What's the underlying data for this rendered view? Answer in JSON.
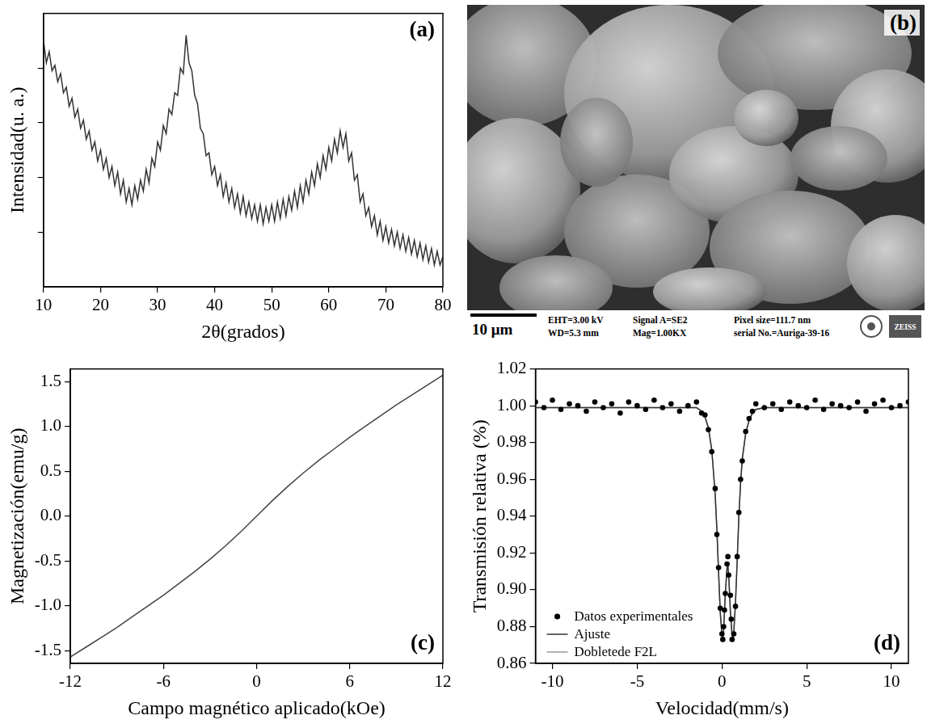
{
  "chart_data": [
    {
      "type": "line",
      "annotations": [
        "(a)"
      ],
      "xlabel": "2θ(grados)",
      "ylabel": "Intensidad(u. a.)",
      "color": "#333333",
      "x": [
        10,
        10.5,
        11,
        11.5,
        12,
        12.5,
        13,
        13.5,
        14,
        14.5,
        15,
        15.5,
        16,
        16.5,
        17,
        17.5,
        18,
        18.5,
        19,
        19.5,
        20,
        20.5,
        21,
        21.5,
        22,
        22.5,
        23,
        23.5,
        24,
        24.5,
        25,
        25.5,
        26,
        26.5,
        27,
        27.5,
        28,
        28.5,
        29,
        29.5,
        30,
        30.5,
        31,
        31.5,
        32,
        32.5,
        33,
        33.5,
        34,
        34.5,
        35,
        35.5,
        36,
        36.5,
        37,
        37.5,
        38,
        38.5,
        39,
        39.5,
        40,
        40.5,
        41,
        41.5,
        42,
        42.5,
        43,
        43.5,
        44,
        44.5,
        45,
        45.5,
        46,
        46.5,
        47,
        47.5,
        48,
        48.5,
        49,
        49.5,
        50,
        50.5,
        51,
        51.5,
        52,
        52.5,
        53,
        53.5,
        54,
        54.5,
        55,
        55.5,
        56,
        56.5,
        57,
        57.5,
        58,
        58.5,
        59,
        59.5,
        60,
        60.5,
        61,
        61.5,
        62,
        62.5,
        63,
        63.5,
        64,
        64.5,
        65,
        65.5,
        66,
        66.5,
        67,
        67.5,
        68,
        68.5,
        69,
        69.5,
        70,
        70.5,
        71,
        71.5,
        72,
        72.5,
        73,
        73.5,
        74,
        74.5,
        75,
        75.5,
        76,
        76.5,
        77,
        77.5,
        78,
        78.5,
        79,
        79.5,
        80
      ],
      "values": [
        90,
        82,
        86,
        79,
        81,
        75,
        78,
        71,
        73,
        66,
        69,
        62,
        65,
        58,
        61,
        54,
        57,
        50,
        53,
        46,
        50,
        43,
        47,
        40,
        44,
        37,
        42,
        34,
        39,
        31,
        36,
        30,
        37,
        32,
        39,
        35,
        43,
        38,
        47,
        44,
        53,
        50,
        59,
        56,
        65,
        63,
        71,
        70,
        80,
        78,
        92,
        82,
        79,
        70,
        67,
        58,
        56,
        48,
        49,
        41,
        44,
        37,
        41,
        33,
        38,
        31,
        36,
        29,
        34,
        27,
        33,
        26,
        31,
        25,
        30,
        24,
        30,
        23,
        29,
        24,
        30,
        24,
        31,
        25,
        32,
        26,
        33,
        28,
        35,
        29,
        37,
        31,
        39,
        34,
        42,
        37,
        45,
        40,
        48,
        43,
        51,
        46,
        54,
        49,
        57,
        51,
        56,
        46,
        49,
        39,
        41,
        31,
        34,
        26,
        29,
        22,
        26,
        19,
        24,
        17,
        22,
        16,
        21,
        15,
        20,
        14,
        19,
        13,
        18,
        12,
        17,
        11,
        16,
        10,
        15,
        9,
        14,
        8,
        13,
        8,
        11
      ],
      "xlim": [
        10,
        80
      ],
      "xticks": [
        10,
        20,
        30,
        40,
        50,
        60,
        70,
        80
      ],
      "ylim": [
        0,
        100
      ],
      "yticks": [
        20,
        40,
        60,
        80
      ],
      "tick_labels": "x",
      "grid": false
    },
    {
      "type": "line",
      "annotations": [
        "(c)"
      ],
      "xlabel": "Campo magnético aplicado(kOe)",
      "ylabel": "Magnetización(emu/g)",
      "color": "#444444",
      "x": [
        -12,
        -11,
        -10,
        -9,
        -8,
        -7,
        -6,
        -5,
        -4,
        -3,
        -2,
        -1,
        0,
        1,
        2,
        3,
        4,
        5,
        6,
        7,
        8,
        9,
        10,
        11,
        12
      ],
      "values": [
        -1.57,
        -1.46,
        -1.35,
        -1.24,
        -1.12,
        -1.0,
        -0.88,
        -0.75,
        -0.62,
        -0.48,
        -0.33,
        -0.17,
        0,
        0.17,
        0.33,
        0.48,
        0.62,
        0.75,
        0.88,
        1.0,
        1.12,
        1.24,
        1.35,
        1.46,
        1.57
      ],
      "xlim": [
        -12,
        12
      ],
      "xticks": [
        -12,
        -6,
        0,
        6,
        12
      ],
      "ylim": [
        -1.64,
        1.64
      ],
      "yticks": [
        -1.5,
        {
          "value": -1,
          "label": "-1.0"
        },
        -0.5,
        {
          "value": 0,
          "label": "0.0"
        },
        0.5,
        {
          "value": 1,
          "label": "1.0"
        },
        1.5
      ],
      "grid": false
    },
    {
      "type": "scatter",
      "annotations": [
        "(d)"
      ],
      "xlabel": "Velocidad(mm/s)",
      "ylabel": "Transmisión relativa (%)",
      "series": [
        {
          "name": "Datos experimentales",
          "type": "scatter",
          "marker": "circle",
          "color": "#000000",
          "x": [
            -11,
            -10.5,
            -10,
            -9.5,
            -9,
            -8.5,
            -8,
            -7.5,
            -7,
            -6.5,
            -6,
            -5.5,
            -5,
            -4.5,
            -4,
            -3.5,
            -3,
            -2.5,
            -2,
            -1.5,
            -1.2,
            -1.0,
            -0.8,
            -0.6,
            -0.4,
            -0.3,
            -0.2,
            -0.1,
            0,
            0.05,
            0.1,
            0.15,
            0.2,
            0.3,
            0.35,
            0.4,
            0.5,
            0.55,
            0.6,
            0.7,
            0.8,
            0.9,
            1.0,
            1.1,
            1.2,
            1.4,
            1.6,
            1.8,
            2.0,
            2.5,
            3,
            3.5,
            4,
            4.5,
            5,
            5.5,
            6,
            6.5,
            7,
            7.5,
            8,
            8.5,
            9,
            9.5,
            10,
            10.5,
            11
          ],
          "values": [
            1.002,
            0.999,
            1.003,
            0.998,
            1.001,
            1.0,
            0.997,
            1.002,
            0.999,
            1.001,
            0.996,
            1.002,
            1.0,
            0.998,
            1.003,
            0.999,
            1.001,
            0.997,
            1.0,
            1.002,
            0.996,
            0.995,
            0.987,
            0.975,
            0.955,
            0.93,
            0.912,
            0.89,
            0.876,
            0.873,
            0.88,
            0.889,
            0.898,
            0.914,
            0.918,
            0.908,
            0.897,
            0.884,
            0.873,
            0.876,
            0.891,
            0.918,
            0.942,
            0.96,
            0.97,
            0.986,
            0.993,
            0.997,
            1.001,
            0.999,
            1.001,
            0.998,
            1.002,
            1.0,
            0.999,
            1.003,
            0.998,
            1.001,
            1.0,
            0.999,
            1.002,
            0.997,
            1.001,
            1.003,
            0.999,
            1.0,
            1.002
          ]
        },
        {
          "name": "Ajuste",
          "type": "line",
          "color": "#333333",
          "x": [
            -11,
            -10,
            -9,
            -8,
            -7,
            -6,
            -5,
            -4,
            -3,
            -2,
            -1.5,
            -1.2,
            -1.0,
            -0.8,
            -0.6,
            -0.4,
            -0.3,
            -0.2,
            -0.1,
            0,
            0.05,
            0.1,
            0.2,
            0.3,
            0.35,
            0.4,
            0.5,
            0.6,
            0.65,
            0.7,
            0.8,
            0.9,
            1.0,
            1.1,
            1.2,
            1.4,
            1.6,
            1.8,
            2.0,
            2.5,
            3,
            4,
            5,
            6,
            7,
            8,
            9,
            10,
            11
          ],
          "values": [
            0.999,
            0.999,
            0.999,
            0.999,
            0.999,
            0.999,
            0.999,
            0.999,
            0.999,
            0.999,
            0.999,
            0.997,
            0.994,
            0.988,
            0.976,
            0.952,
            0.933,
            0.91,
            0.888,
            0.875,
            0.874,
            0.878,
            0.898,
            0.912,
            0.913,
            0.908,
            0.888,
            0.875,
            0.874,
            0.877,
            0.893,
            0.916,
            0.94,
            0.958,
            0.971,
            0.985,
            0.992,
            0.996,
            0.998,
            0.999,
            0.999,
            0.999,
            0.999,
            0.999,
            0.999,
            0.999,
            0.999,
            0.999,
            0.999
          ]
        },
        {
          "name": "Dobletede F2L",
          "type": "line",
          "color": "#999999",
          "x": [
            -11,
            -10,
            -9,
            -8,
            -7,
            -6,
            -5,
            -4,
            -3,
            -2,
            -1.5,
            -1.2,
            -1.0,
            -0.8,
            -0.6,
            -0.4,
            -0.3,
            -0.2,
            -0.1,
            0,
            0.05,
            0.1,
            0.2,
            0.3,
            0.35,
            0.4,
            0.5,
            0.6,
            0.65,
            0.7,
            0.8,
            0.9,
            1.0,
            1.1,
            1.2,
            1.4,
            1.6,
            1.8,
            2.0,
            2.5,
            3,
            4,
            5,
            6,
            7,
            8,
            9,
            10,
            11
          ],
          "values": [
            0.999,
            0.999,
            0.999,
            0.999,
            0.999,
            0.999,
            0.999,
            0.999,
            0.999,
            0.999,
            0.999,
            0.997,
            0.994,
            0.988,
            0.976,
            0.952,
            0.933,
            0.91,
            0.888,
            0.875,
            0.874,
            0.878,
            0.898,
            0.912,
            0.913,
            0.908,
            0.888,
            0.875,
            0.874,
            0.877,
            0.893,
            0.916,
            0.94,
            0.958,
            0.971,
            0.985,
            0.992,
            0.996,
            0.998,
            0.999,
            0.999,
            0.999,
            0.999,
            0.999,
            0.999,
            0.999,
            0.999,
            0.999,
            0.999
          ]
        }
      ],
      "xlim": [
        -11,
        11
      ],
      "xticks": [
        -10,
        -5,
        0,
        5,
        10
      ],
      "ylim": [
        0.86,
        1.02
      ],
      "yticks": [
        0.86,
        0.88,
        {
          "value": 0.9,
          "label": "0.90"
        },
        0.92,
        0.94,
        0.96,
        0.98,
        {
          "value": 1,
          "label": "1.00"
        },
        1.02
      ],
      "legend": "lower left",
      "grid": false
    }
  ],
  "image": {
    "annotations": [
      "(b)"
    ],
    "scale_bar": "10 μm",
    "info": [
      "EHT=3.00 kV",
      "Signal A=SE2",
      "Pixel size=111.7 nm",
      "WD=5.3 mm",
      "Mag=1.00KX",
      "serial No.=Auriga-39-16"
    ],
    "logo": "ZEISS"
  }
}
